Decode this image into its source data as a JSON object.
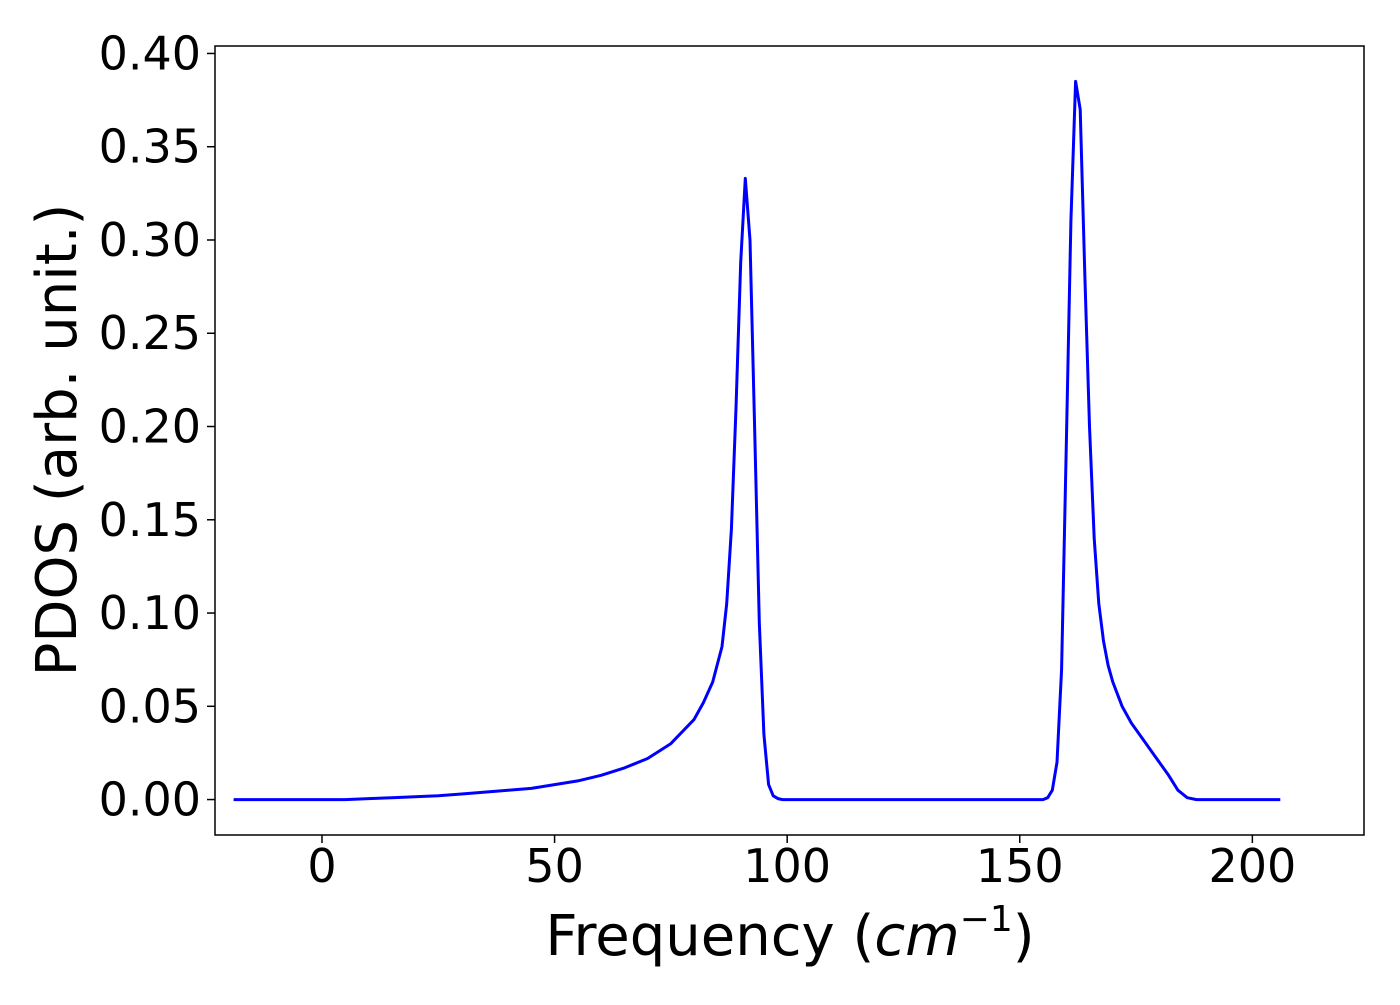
{
  "chart_data": {
    "type": "line",
    "title": "",
    "xlabel": "Frequency (",
    "xlabel_math": "cm",
    "xlabel_sup": "−1",
    "xlabel_close": ")",
    "ylabel": "PDOS (arb. unit.)",
    "xlim": [
      -23,
      224
    ],
    "ylim": [
      -0.019,
      0.404
    ],
    "x_ticks": [
      0,
      50,
      100,
      150,
      200
    ],
    "x_tick_labels": [
      "0",
      "50",
      "100",
      "150",
      "200"
    ],
    "y_ticks": [
      0.0,
      0.05,
      0.1,
      0.15,
      0.2,
      0.25,
      0.3,
      0.35,
      0.4
    ],
    "y_tick_labels": [
      "0.00",
      "0.05",
      "0.10",
      "0.15",
      "0.20",
      "0.25",
      "0.30",
      "0.35",
      "0.40"
    ],
    "grid": false,
    "legend": "none",
    "series": [
      {
        "color": "#0000ff",
        "x": [
          -19,
          0,
          5,
          10,
          15,
          20,
          25,
          30,
          35,
          40,
          45,
          50,
          55,
          60,
          65,
          70,
          75,
          80,
          82,
          84,
          86,
          87,
          88,
          89,
          90,
          91,
          92,
          93,
          94,
          95,
          96,
          97,
          98,
          99,
          100,
          110,
          120,
          130,
          140,
          150,
          155,
          156,
          157,
          158,
          159,
          160,
          161,
          162,
          163,
          164,
          165,
          166,
          167,
          168,
          169,
          170,
          172,
          174,
          176,
          178,
          180,
          182,
          184,
          186,
          188,
          190,
          192,
          195,
          200,
          206
        ],
        "y": [
          0.0,
          0.0,
          0.0,
          0.0005,
          0.001,
          0.0015,
          0.002,
          0.003,
          0.004,
          0.005,
          0.006,
          0.008,
          0.01,
          0.013,
          0.017,
          0.022,
          0.03,
          0.043,
          0.052,
          0.063,
          0.082,
          0.105,
          0.145,
          0.21,
          0.288,
          0.333,
          0.3,
          0.2,
          0.095,
          0.035,
          0.008,
          0.002,
          0.0005,
          0.0,
          0.0,
          0.0,
          0.0,
          0.0,
          0.0,
          0.0,
          0.0,
          0.001,
          0.005,
          0.02,
          0.07,
          0.19,
          0.31,
          0.385,
          0.37,
          0.28,
          0.2,
          0.14,
          0.105,
          0.085,
          0.072,
          0.063,
          0.05,
          0.041,
          0.034,
          0.027,
          0.02,
          0.013,
          0.005,
          0.001,
          0.0,
          0.0,
          0.0,
          0.0,
          0.0,
          0.0
        ]
      }
    ]
  }
}
